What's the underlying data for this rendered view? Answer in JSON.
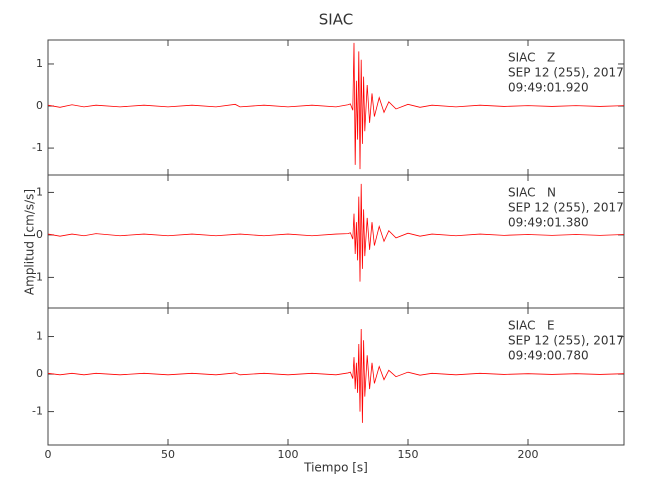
{
  "title": "SIAC",
  "xlabel": "Tiempo [s]",
  "ylabel": "Amplitud [cm/s/s]",
  "chart_data": [
    {
      "type": "line",
      "annotation": [
        "SIAC   Z",
        "SEP 12 (255), 2017",
        "09:49:01.920"
      ],
      "xlim": [
        0,
        240
      ],
      "xticks": [
        0,
        50,
        100,
        150,
        200
      ],
      "ylim": [
        -1.64,
        1.57
      ],
      "yticks": [
        -1,
        0,
        1
      ],
      "series": [
        {
          "name": "SIAC Z",
          "color": "#ff0000",
          "x": [
            0,
            5,
            10,
            15,
            20,
            30,
            40,
            50,
            60,
            70,
            78,
            80,
            90,
            100,
            110,
            120,
            125,
            126,
            127,
            127.5,
            128,
            128.5,
            129,
            129.5,
            130,
            130.5,
            131,
            131.5,
            132,
            133,
            134,
            135,
            136,
            138,
            140,
            142,
            145,
            150,
            155,
            160,
            170,
            180,
            190,
            200,
            210,
            220,
            230,
            240
          ],
          "values": [
            0.02,
            -0.03,
            0.03,
            -0.02,
            0.02,
            -0.02,
            0.02,
            -0.02,
            0.02,
            -0.02,
            0.04,
            -0.02,
            0.02,
            -0.02,
            0.02,
            -0.02,
            0.03,
            0.05,
            -0.1,
            1.5,
            -1.4,
            0.6,
            -0.8,
            1.3,
            -1.5,
            1.1,
            -0.9,
            0.7,
            -0.6,
            0.5,
            -0.4,
            0.3,
            -0.25,
            0.2,
            -0.15,
            0.1,
            -0.07,
            0.04,
            -0.03,
            0.02,
            -0.02,
            0.02,
            -0.01,
            0.01,
            -0.01,
            0.01,
            -0.01,
            0.01
          ]
        }
      ]
    },
    {
      "type": "line",
      "annotation": [
        "SIAC   N",
        "SEP 12 (255), 2017",
        "09:49:01.380"
      ],
      "xlim": [
        0,
        240
      ],
      "xticks": [
        0,
        50,
        100,
        150,
        200
      ],
      "ylim": [
        -1.72,
        1.41
      ],
      "yticks": [
        -1,
        0,
        1
      ],
      "series": [
        {
          "name": "SIAC N",
          "color": "#ff0000",
          "x": [
            0,
            5,
            10,
            15,
            20,
            30,
            40,
            50,
            60,
            70,
            80,
            90,
            100,
            110,
            120,
            125,
            126,
            127,
            127.5,
            128,
            128.5,
            129,
            129.5,
            130,
            130.5,
            131,
            131.5,
            132,
            133,
            134,
            135,
            136,
            138,
            140,
            142,
            145,
            150,
            155,
            160,
            170,
            180,
            190,
            200,
            210,
            220,
            230,
            240
          ],
          "values": [
            0.02,
            -0.03,
            0.02,
            -0.02,
            0.03,
            -0.02,
            0.02,
            -0.02,
            0.02,
            -0.02,
            0.02,
            -0.02,
            0.02,
            -0.02,
            0.02,
            0.03,
            0.05,
            -0.1,
            0.5,
            -0.45,
            0.3,
            -0.6,
            0.9,
            -1.1,
            1.2,
            -0.8,
            0.6,
            -0.5,
            0.4,
            -0.35,
            0.3,
            -0.25,
            0.2,
            -0.15,
            0.1,
            -0.07,
            0.04,
            -0.03,
            0.02,
            -0.02,
            0.02,
            -0.01,
            0.01,
            -0.01,
            0.01,
            -0.01,
            0.01
          ]
        }
      ]
    },
    {
      "type": "line",
      "annotation": [
        "SIAC   E",
        "SEP 12 (255), 2017",
        "09:49:00.780"
      ],
      "xlim": [
        0,
        240
      ],
      "xticks": [
        0,
        50,
        100,
        150,
        200
      ],
      "ylim": [
        -1.89,
        1.76
      ],
      "yticks": [
        -1,
        0,
        1
      ],
      "series": [
        {
          "name": "SIAC E",
          "color": "#ff0000",
          "x": [
            0,
            5,
            10,
            15,
            20,
            30,
            40,
            50,
            60,
            70,
            78,
            80,
            90,
            100,
            110,
            120,
            125,
            126,
            127,
            127.5,
            128,
            128.5,
            129,
            129.5,
            130,
            130.5,
            131,
            131.5,
            132,
            133,
            134,
            135,
            136,
            138,
            140,
            142,
            145,
            150,
            155,
            160,
            170,
            180,
            190,
            200,
            210,
            220,
            230,
            240
          ],
          "values": [
            0.02,
            -0.02,
            0.02,
            -0.02,
            0.02,
            -0.02,
            0.02,
            -0.02,
            0.02,
            -0.02,
            0.03,
            -0.02,
            0.02,
            -0.02,
            0.02,
            -0.02,
            0.03,
            0.05,
            -0.12,
            0.45,
            -0.4,
            0.3,
            -0.5,
            0.8,
            -1.0,
            1.2,
            -1.3,
            0.9,
            -0.6,
            0.5,
            -0.4,
            0.3,
            -0.25,
            0.2,
            -0.15,
            0.1,
            -0.07,
            0.05,
            -0.03,
            0.02,
            -0.02,
            0.02,
            -0.01,
            0.01,
            -0.01,
            0.01,
            -0.01,
            0.01
          ]
        }
      ]
    }
  ]
}
